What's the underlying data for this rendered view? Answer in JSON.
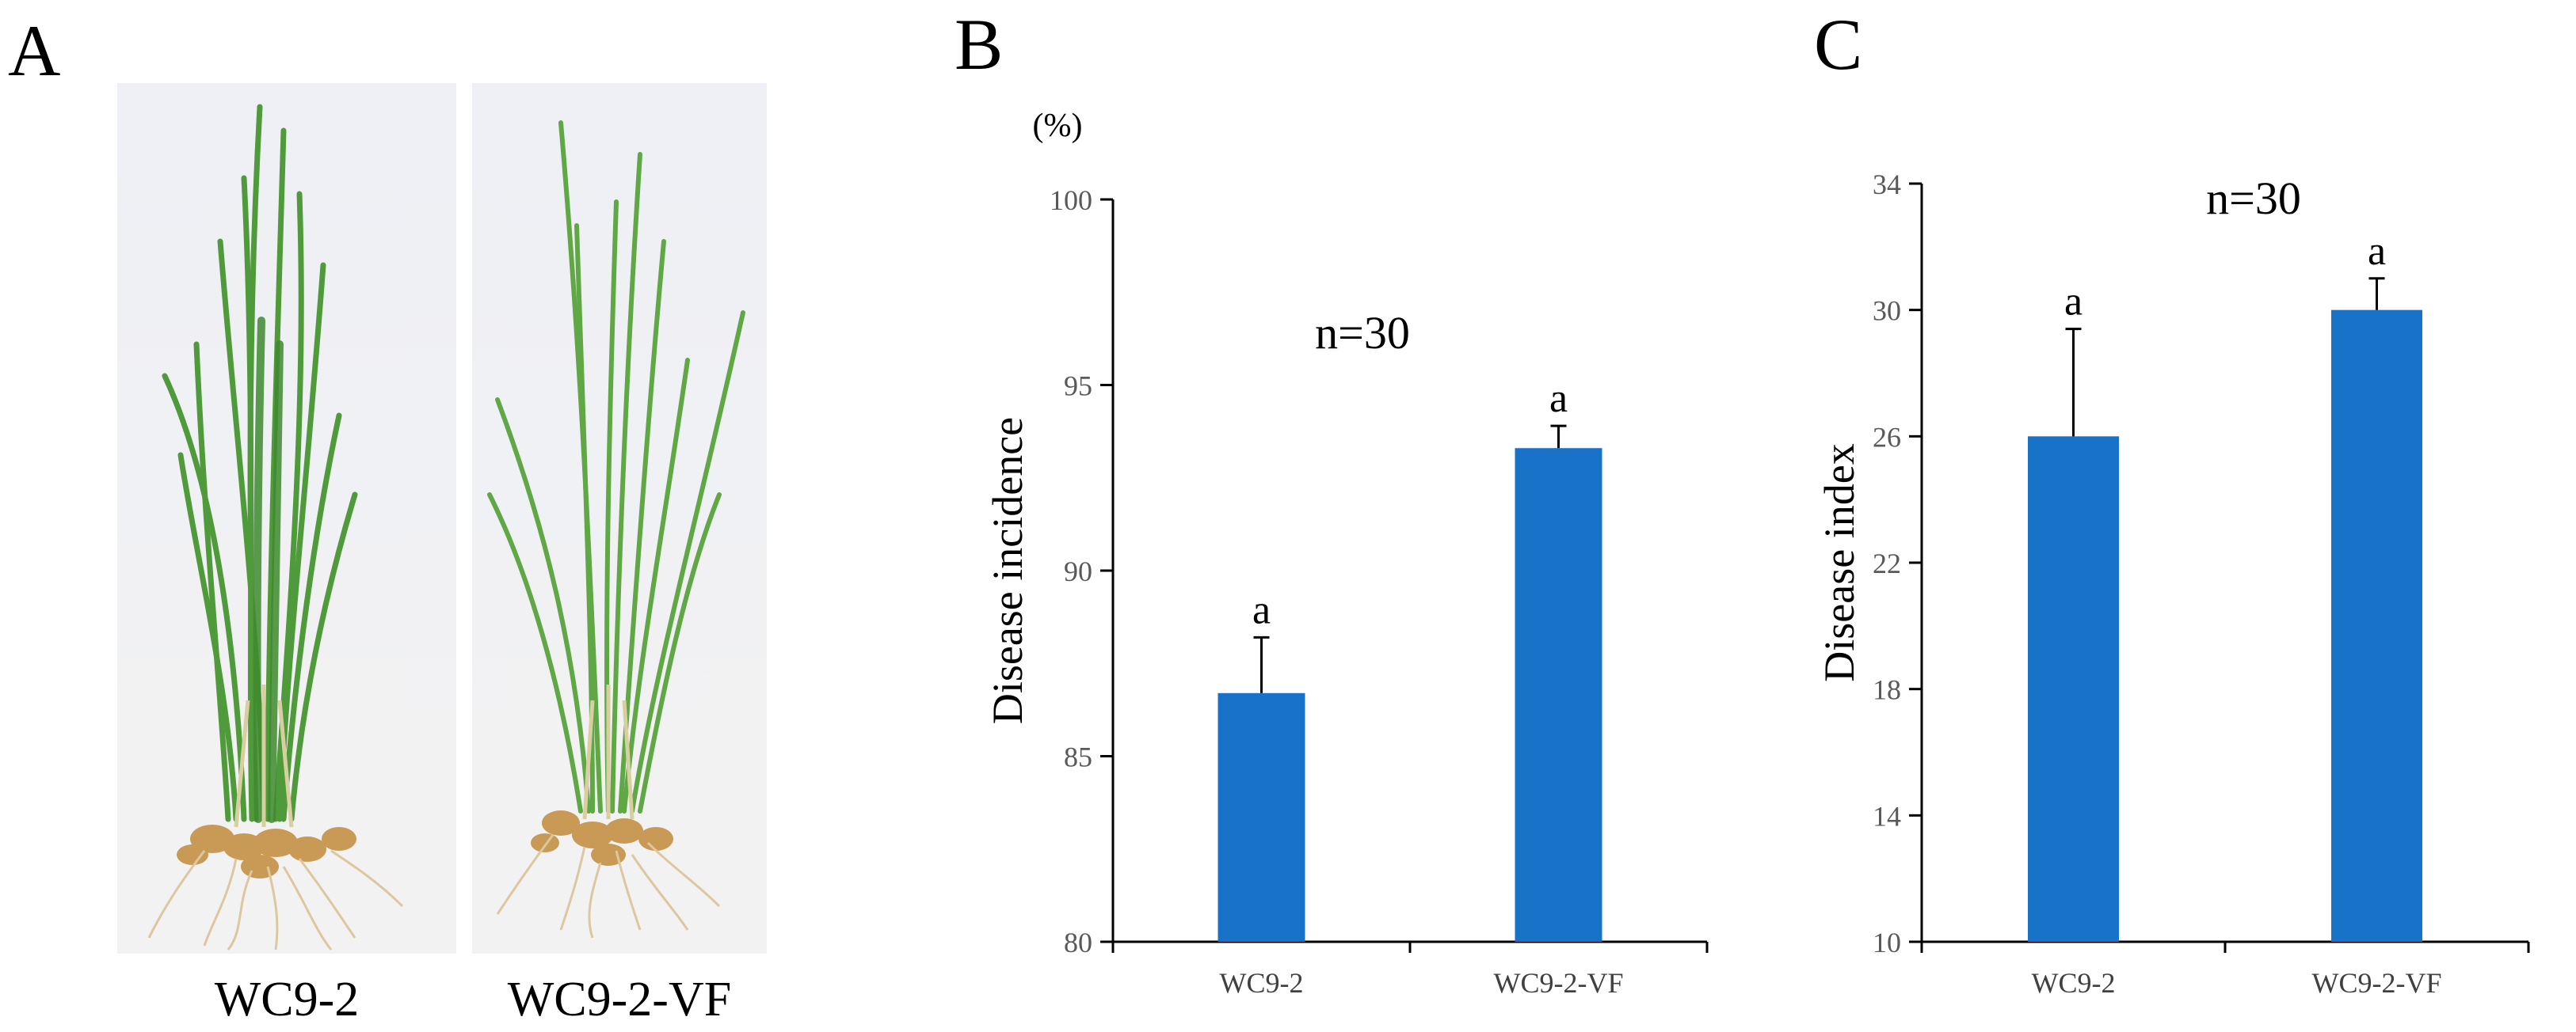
{
  "panel_letters": {
    "a": "A",
    "b": "B",
    "c": "C"
  },
  "photo": {
    "left_label": "WC9-2",
    "right_label": "WC9-2-VF"
  },
  "colors": {
    "bar": "#1872c8",
    "leaf": "#4f9a3a",
    "root": "#c89a55"
  },
  "chart_data": [
    {
      "panel": "B",
      "type": "bar",
      "categories": [
        "WC9-2",
        "WC9-2-VF"
      ],
      "values": [
        86.7,
        93.3
      ],
      "errors": [
        1.5,
        0.6
      ],
      "significance": [
        "a",
        "a"
      ],
      "annotation": "n=30",
      "title": "",
      "xlabel": "",
      "ylabel": "Disease incidence",
      "unit_label": "(%)",
      "ylim": [
        80,
        100
      ],
      "yticks": [
        80,
        85,
        90,
        95,
        100
      ]
    },
    {
      "panel": "C",
      "type": "bar",
      "categories": [
        "WC9-2",
        "WC9-2-VF"
      ],
      "values": [
        26.0,
        30.0
      ],
      "errors": [
        3.4,
        1.0
      ],
      "significance": [
        "a",
        "a"
      ],
      "annotation": "n=30",
      "title": "",
      "xlabel": "",
      "ylabel": "Disease index",
      "ylim": [
        10,
        34
      ],
      "yticks": [
        10,
        14,
        18,
        22,
        26,
        30,
        34
      ]
    }
  ]
}
